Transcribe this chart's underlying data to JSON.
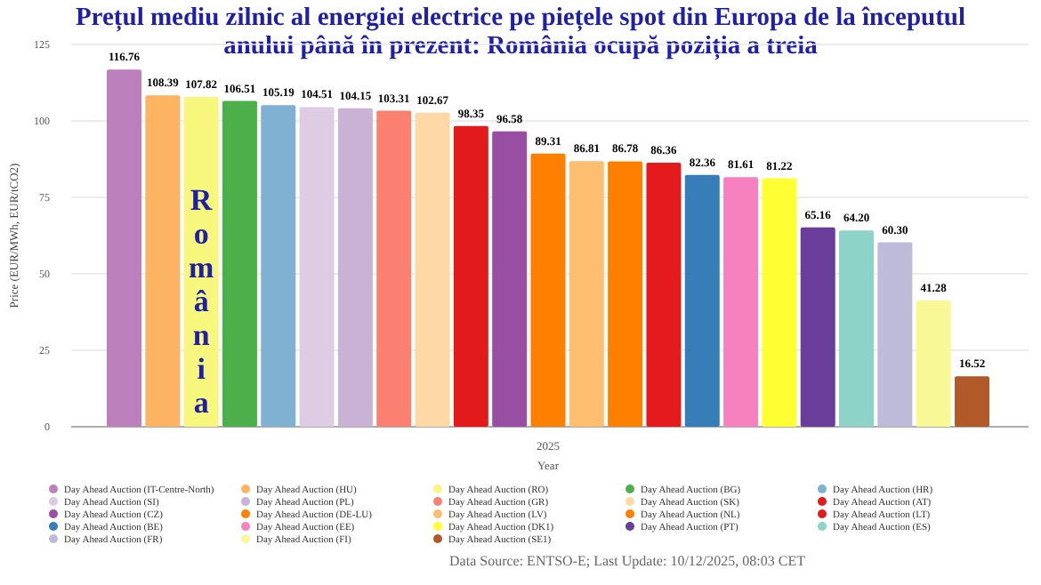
{
  "chart_data": {
    "type": "bar",
    "title": "Prețul mediu zilnic al energiei electrice pe piețele spot din Europa de la începutul anului până în prezent: România ocupă poziția a treia",
    "xlabel": "Year",
    "ylabel": "Price (EUR/MWh, EUR/tCO2)",
    "categories": [
      "2025"
    ],
    "ylim": [
      0,
      125
    ],
    "yticks": [
      0,
      25,
      50,
      75,
      100,
      125
    ],
    "grid": "y",
    "legend": "bottom",
    "data_labels": true,
    "annotations": [
      "România",
      "Data Source: ENTSO-E; Last Update: 10/12/2025, 08:03 CET"
    ],
    "series": [
      {
        "name": "Day Ahead Auction (IT-Centre-North)",
        "color": "#bc80bd",
        "values": [
          116.76
        ]
      },
      {
        "name": "Day Ahead Auction (HU)",
        "color": "#fdb462",
        "values": [
          108.39
        ]
      },
      {
        "name": "Day Ahead Auction (RO)",
        "color": "#f7f77e",
        "values": [
          107.82
        ]
      },
      {
        "name": "Day Ahead Auction (BG)",
        "color": "#4daf4a",
        "values": [
          106.51
        ]
      },
      {
        "name": "Day Ahead Auction (HR)",
        "color": "#80b1d3",
        "values": [
          105.19
        ]
      },
      {
        "name": "Day Ahead Auction (SI)",
        "color": "#decbe4",
        "values": [
          104.51
        ]
      },
      {
        "name": "Day Ahead Auction (PL)",
        "color": "#cab2d6",
        "values": [
          104.15
        ]
      },
      {
        "name": "Day Ahead Auction (GR)",
        "color": "#fb8072",
        "values": [
          103.31
        ]
      },
      {
        "name": "Day Ahead Auction (SK)",
        "color": "#fed9a6",
        "values": [
          102.67
        ]
      },
      {
        "name": "Day Ahead Auction (AT)",
        "color": "#e31a1c",
        "values": [
          98.35
        ]
      },
      {
        "name": "Day Ahead Auction (CZ)",
        "color": "#984ea3",
        "values": [
          96.58
        ]
      },
      {
        "name": "Day Ahead Auction (DE-LU)",
        "color": "#ff7f00",
        "values": [
          89.31
        ]
      },
      {
        "name": "Day Ahead Auction (LV)",
        "color": "#fdbf6f",
        "values": [
          86.81
        ]
      },
      {
        "name": "Day Ahead Auction (NL)",
        "color": "#ff8000",
        "values": [
          86.78
        ]
      },
      {
        "name": "Day Ahead Auction (LT)",
        "color": "#e41a1c",
        "values": [
          86.36
        ]
      },
      {
        "name": "Day Ahead Auction (BE)",
        "color": "#377eb8",
        "values": [
          82.36
        ]
      },
      {
        "name": "Day Ahead Auction (EE)",
        "color": "#f781bf",
        "values": [
          81.61
        ]
      },
      {
        "name": "Day Ahead Auction (DK1)",
        "color": "#ffff33",
        "values": [
          81.22
        ]
      },
      {
        "name": "Day Ahead Auction (PT)",
        "color": "#6a3d9a",
        "values": [
          65.16
        ]
      },
      {
        "name": "Day Ahead Auction (ES)",
        "color": "#8dd3c7",
        "values": [
          64.2
        ],
        "value_labels": [
          "64.20"
        ]
      },
      {
        "name": "Day Ahead Auction (FR)",
        "color": "#bebada",
        "values": [
          60.3
        ],
        "value_labels": [
          "60.30"
        ]
      },
      {
        "name": "Day Ahead Auction (FI)",
        "color": "#f8f896",
        "values": [
          41.28
        ]
      },
      {
        "name": "Day Ahead Auction (SE1)",
        "color": "#b15928",
        "values": [
          16.52
        ]
      }
    ]
  }
}
